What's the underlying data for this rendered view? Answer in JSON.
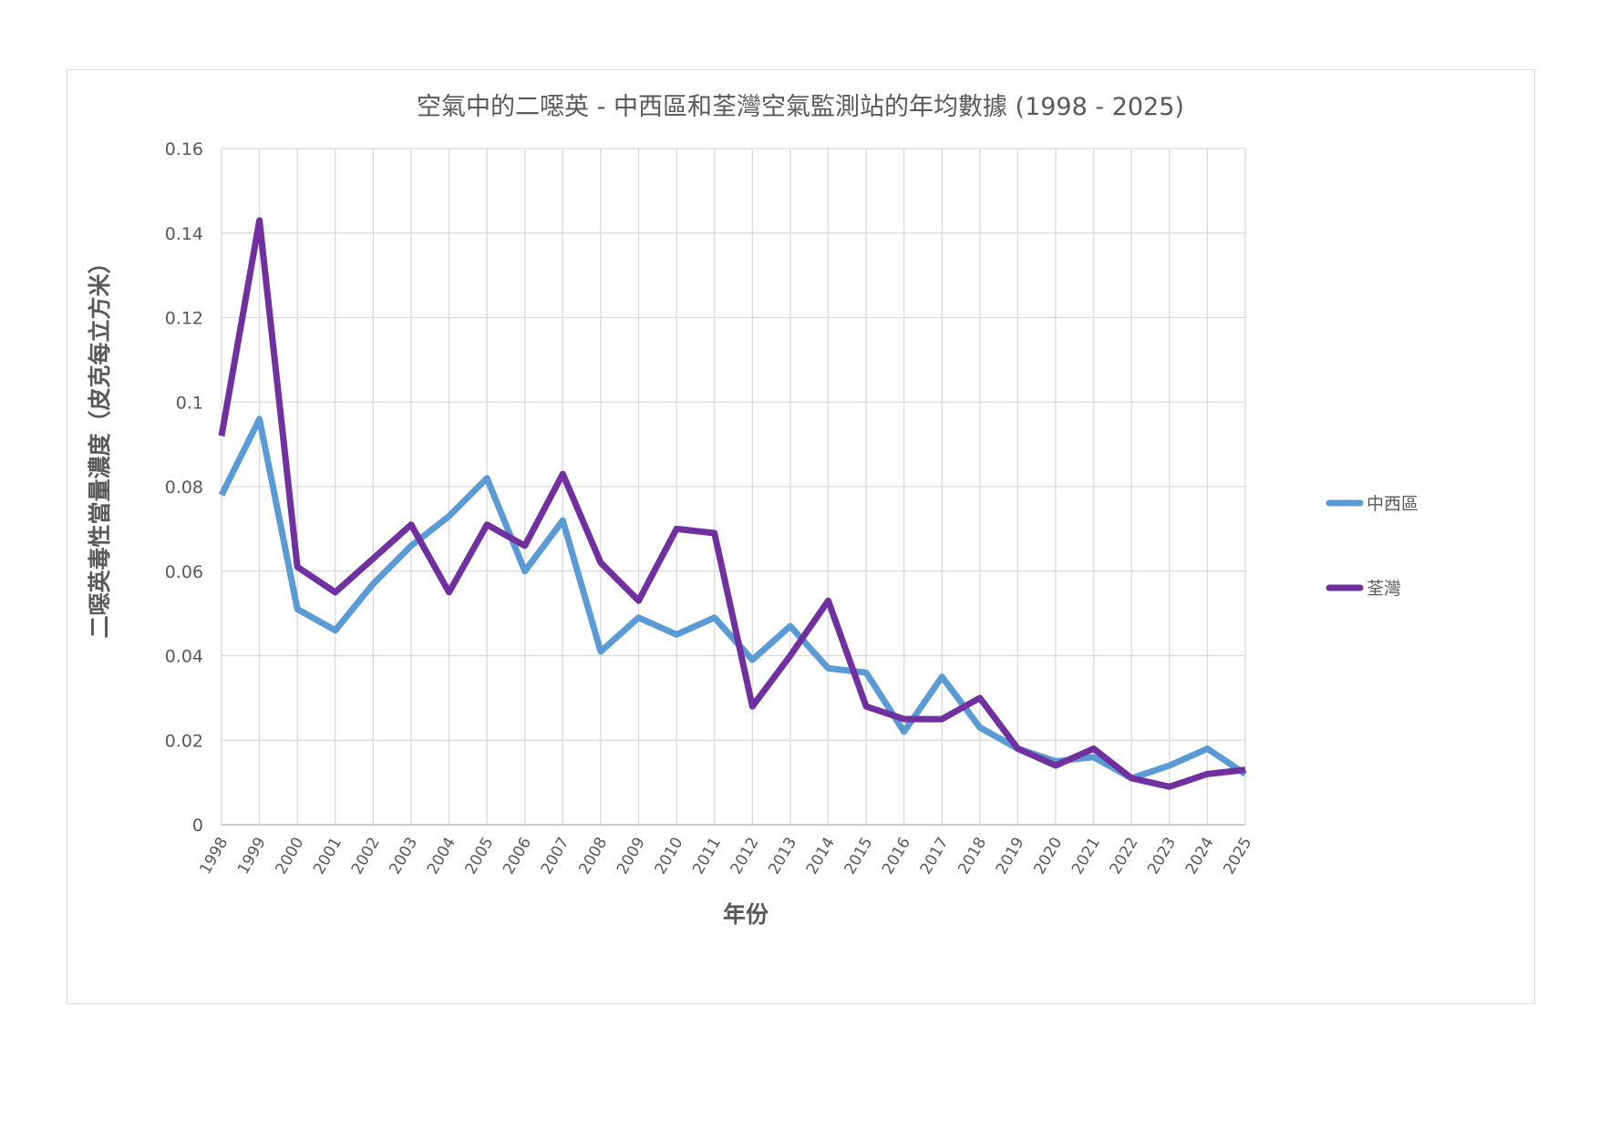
{
  "chart_data": {
    "type": "line",
    "title": "空氣中的二噁英 - 中西區和荃灣空氣監測站的年均數據 (1998 - 2025)",
    "xlabel": "年份",
    "ylabel": "二噁英毒性當量濃度（皮克每立方米）",
    "ylim": [
      0,
      0.16
    ],
    "yticks": [
      0,
      0.02,
      0.04,
      0.06,
      0.08,
      0.1,
      0.12,
      0.14,
      0.16
    ],
    "ytick_labels": [
      "0",
      "0.02",
      "0.04",
      "0.06",
      "0.08",
      "0.1",
      "0.12",
      "0.14",
      "0.16"
    ],
    "grid": true,
    "legend_position": "right",
    "categories": [
      "1998",
      "1999",
      "2000",
      "2001",
      "2002",
      "2003",
      "2004",
      "2005",
      "2006",
      "2007",
      "2008",
      "2009",
      "2010",
      "2011",
      "2012",
      "2013",
      "2014",
      "2015",
      "2016",
      "2017",
      "2018",
      "2019",
      "2020",
      "2021",
      "2022",
      "2023",
      "2024",
      "2025"
    ],
    "series": [
      {
        "name": "中西區",
        "color": "#5b9bd5",
        "values": [
          0.078,
          0.096,
          0.051,
          0.046,
          0.057,
          0.066,
          0.073,
          0.082,
          0.06,
          0.072,
          0.041,
          0.049,
          0.045,
          0.049,
          0.039,
          0.047,
          0.037,
          0.036,
          0.022,
          0.035,
          0.023,
          0.018,
          0.015,
          0.016,
          0.011,
          0.014,
          0.018,
          0.012
        ]
      },
      {
        "name": "荃灣",
        "color": "#7030a0",
        "values": [
          0.092,
          0.143,
          0.061,
          0.055,
          0.063,
          0.071,
          0.055,
          0.071,
          0.066,
          0.083,
          0.062,
          0.053,
          0.07,
          0.069,
          0.028,
          0.04,
          0.053,
          0.028,
          0.025,
          0.025,
          0.03,
          0.018,
          0.014,
          0.018,
          0.011,
          0.009,
          0.012,
          0.013
        ]
      }
    ]
  }
}
